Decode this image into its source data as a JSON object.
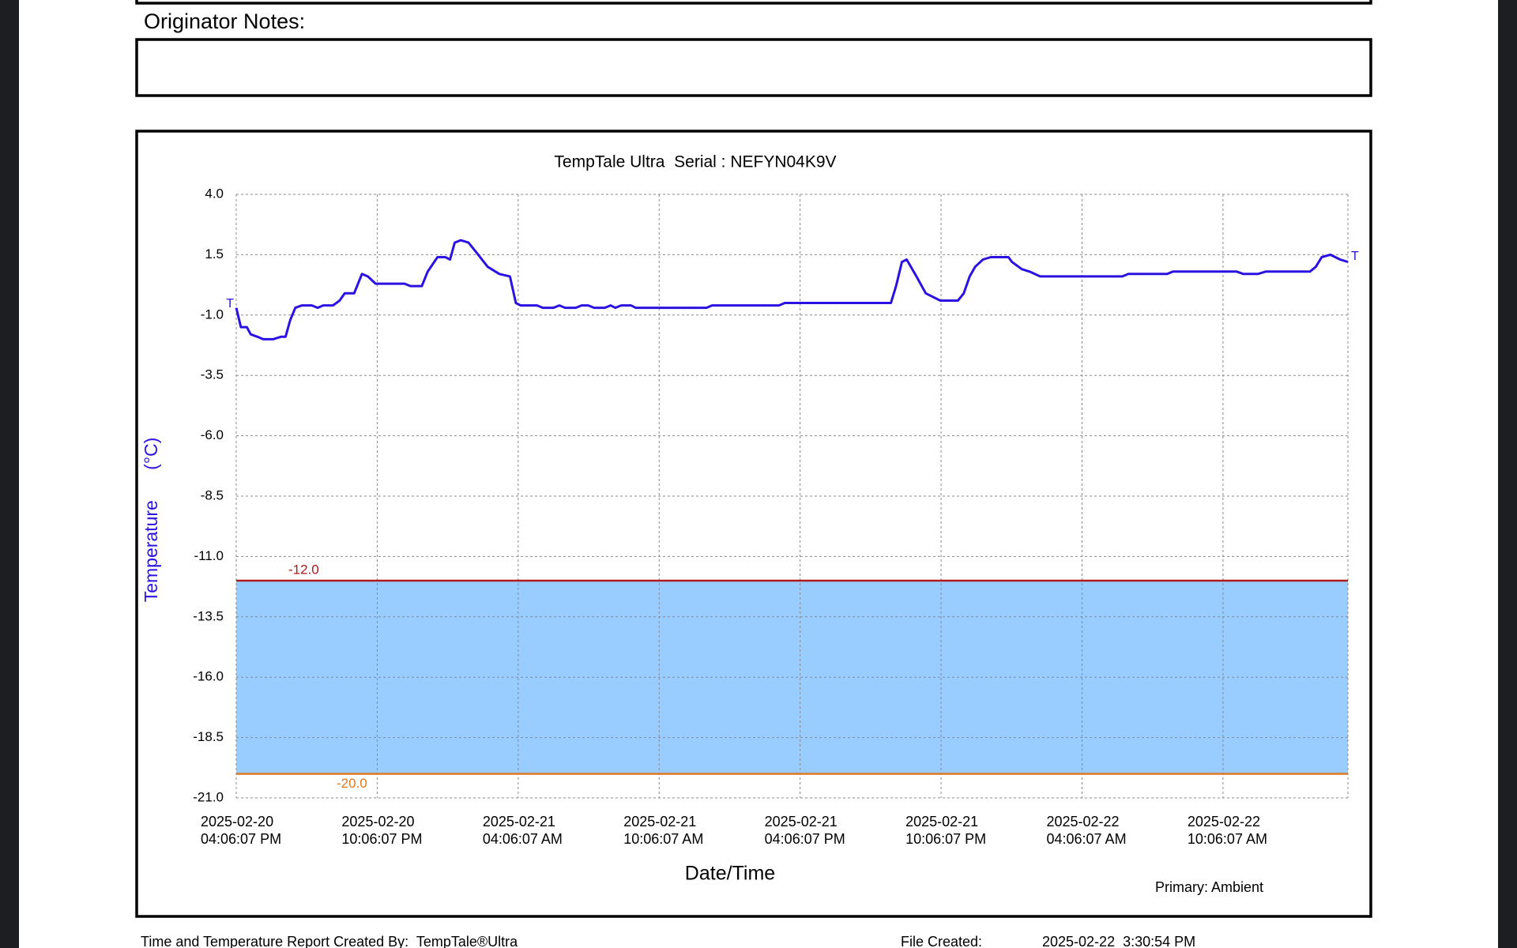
{
  "header": {
    "notes_label": "Originator Notes:"
  },
  "chart_data": {
    "type": "line",
    "title": "TempTale Ultra  Serial : NEFYN04K9V",
    "y_label": "Temperature      (°C)",
    "x_label": "Date/Time",
    "legend": "bottom-right",
    "grid": true,
    "ylim": [
      -21,
      4
    ],
    "yticks": [
      {
        "value": 4,
        "label": "4.0"
      },
      1.5,
      {
        "value": -1,
        "label": "-1.0"
      },
      -3.5,
      {
        "value": -6,
        "label": "-6.0"
      },
      -8.5,
      {
        "value": -11,
        "label": "-11.0"
      },
      -13.5,
      {
        "value": -16,
        "label": "-16.0"
      },
      -18.5,
      {
        "value": -21,
        "label": "-21.0"
      }
    ],
    "xlim": [
      "2025-02-20 16:06:07",
      "2025-02-22 15:25:07"
    ],
    "xticks": [
      {
        "value": "2025-02-20 16:06:07",
        "label": [
          "2025-02-20",
          "04:06:07 PM"
        ]
      },
      {
        "value": "2025-02-20 22:06:07",
        "label": [
          "2025-02-20",
          "10:06:07 PM"
        ]
      },
      {
        "value": "2025-02-21 04:06:07",
        "label": [
          "2025-02-21",
          "04:06:07 AM"
        ]
      },
      {
        "value": "2025-02-21 10:06:07",
        "label": [
          "2025-02-21",
          "10:06:07 AM"
        ]
      },
      {
        "value": "2025-02-21 16:06:07",
        "label": [
          "2025-02-21",
          "04:06:07 PM"
        ]
      },
      {
        "value": "2025-02-21 22:06:07",
        "label": [
          "2025-02-21",
          "10:06:07 PM"
        ]
      },
      {
        "value": "2025-02-22 04:06:07",
        "label": [
          "2025-02-22",
          "04:06:07 AM"
        ]
      },
      {
        "value": "2025-02-22 10:06:07",
        "label": [
          "2025-02-22",
          "10:06:07 AM"
        ]
      }
    ],
    "thresholds": [
      {
        "value": -12,
        "label": "-12.0",
        "color": "#b01a1a"
      },
      {
        "value": -20,
        "label": "-20.0",
        "color": "#e07820"
      }
    ],
    "band_color": "#99ccff",
    "trip_markers": [
      "T",
      "T"
    ],
    "x": [
      "2025-02-20 16:06:07",
      "2025-02-20 16:18:07",
      "2025-02-20 16:33:07",
      "2025-02-20 16:43:07",
      "2025-02-20 17:00:07",
      "2025-02-20 17:15:07",
      "2025-02-20 17:40:07",
      "2025-02-20 18:00:07",
      "2025-02-20 18:12:07",
      "2025-02-20 18:24:07",
      "2025-02-20 18:37:07",
      "2025-02-20 18:54:07",
      "2025-02-20 19:19:07",
      "2025-02-20 19:34:07",
      "2025-02-20 19:48:07",
      "2025-02-20 20:13:07",
      "2025-02-20 20:30:07",
      "2025-02-20 20:43:07",
      "2025-02-20 21:07:07",
      "2025-02-20 21:27:07",
      "2025-02-20 21:42:07",
      "2025-02-20 22:02:07",
      "2025-02-20 23:16:07",
      "2025-02-20 23:31:07",
      "2025-02-21 00:00:07",
      "2025-02-21 00:15:07",
      "2025-02-21 00:40:07",
      "2025-02-21 01:00:07",
      "2025-02-21 01:12:07",
      "2025-02-21 01:24:07",
      "2025-02-21 01:39:07",
      "2025-02-21 01:59:07",
      "2025-02-21 02:19:07",
      "2025-02-21 02:48:07",
      "2025-02-21 03:18:07",
      "2025-02-21 03:45:07",
      "2025-02-21 04:00:07",
      "2025-02-21 04:12:07",
      "2025-02-21 04:54:07",
      "2025-02-21 05:09:07",
      "2025-02-21 05:36:07",
      "2025-02-21 05:51:07",
      "2025-02-21 06:06:07",
      "2025-02-21 06:33:07",
      "2025-02-21 06:48:07",
      "2025-02-21 07:05:07",
      "2025-02-21 07:20:07",
      "2025-02-21 07:47:07",
      "2025-02-21 08:02:07",
      "2025-02-21 08:14:07",
      "2025-02-21 08:29:07",
      "2025-02-21 08:54:07",
      "2025-02-21 09:06:07",
      "2025-02-21 12:07:07",
      "2025-02-21 12:21:07",
      "2025-02-21 15:12:07",
      "2025-02-21 15:27:07",
      "2025-02-21 19:58:07",
      "2025-02-21 20:11:07",
      "2025-02-21 20:26:07",
      "2025-02-21 20:38:07",
      "2025-02-21 21:03:07",
      "2025-02-21 21:27:07",
      "2025-02-21 22:04:07",
      "2025-02-21 22:49:07",
      "2025-02-21 23:04:07",
      "2025-02-21 23:19:07",
      "2025-02-21 23:33:07",
      "2025-02-21 23:53:07",
      "2025-02-22 00:13:07",
      "2025-02-22 00:28:07",
      "2025-02-22 00:40:07",
      "2025-02-22 00:58:07",
      "2025-02-22 01:07:07",
      "2025-02-22 01:32:07",
      "2025-02-22 01:52:07",
      "2025-02-22 02:19:07",
      "2025-02-22 05:49:07",
      "2025-02-22 06:04:07",
      "2025-02-22 07:43:07",
      "2025-02-22 07:58:07",
      "2025-02-22 10:41:07",
      "2025-02-22 10:58:07",
      "2025-02-22 11:35:07",
      "2025-02-22 11:55:07",
      "2025-02-22 13:48:07",
      "2025-02-22 14:03:07",
      "2025-02-22 14:18:07",
      "2025-02-22 14:40:07",
      "2025-02-22 15:05:07",
      "2025-02-22 15:25:07"
    ],
    "series": [
      {
        "name": "Primary: Ambient",
        "color": "#2b12e0",
        "values": [
          -0.7,
          -1.5,
          -1.5,
          -1.8,
          -1.9,
          -2.0,
          -2.0,
          -1.9,
          -1.9,
          -1.2,
          -0.7,
          -0.6,
          -0.6,
          -0.7,
          -0.6,
          -0.6,
          -0.4,
          -0.1,
          -0.1,
          0.7,
          0.6,
          0.3,
          0.3,
          0.2,
          0.2,
          0.8,
          1.4,
          1.4,
          1.3,
          2.0,
          2.1,
          2.0,
          1.6,
          1.0,
          0.7,
          0.6,
          -0.5,
          -0.6,
          -0.6,
          -0.7,
          -0.7,
          -0.6,
          -0.7,
          -0.7,
          -0.6,
          -0.6,
          -0.7,
          -0.7,
          -0.6,
          -0.7,
          -0.6,
          -0.6,
          -0.7,
          -0.7,
          -0.6,
          -0.6,
          -0.5,
          -0.5,
          0.2,
          1.2,
          1.3,
          0.6,
          -0.1,
          -0.4,
          -0.4,
          -0.1,
          0.6,
          1.0,
          1.3,
          1.4,
          1.4,
          1.4,
          1.4,
          1.2,
          0.9,
          0.8,
          0.6,
          0.6,
          0.7,
          0.7,
          0.8,
          0.8,
          0.7,
          0.7,
          0.8,
          0.8,
          1.0,
          1.4,
          1.5,
          1.3,
          1.2
        ]
      }
    ]
  },
  "footer": {
    "created_by": "Time and Temperature Report Created By:  TempTale®Ultra",
    "file_created_label": "File Created:",
    "file_created": "2025-02-22  3:30:54 PM"
  }
}
